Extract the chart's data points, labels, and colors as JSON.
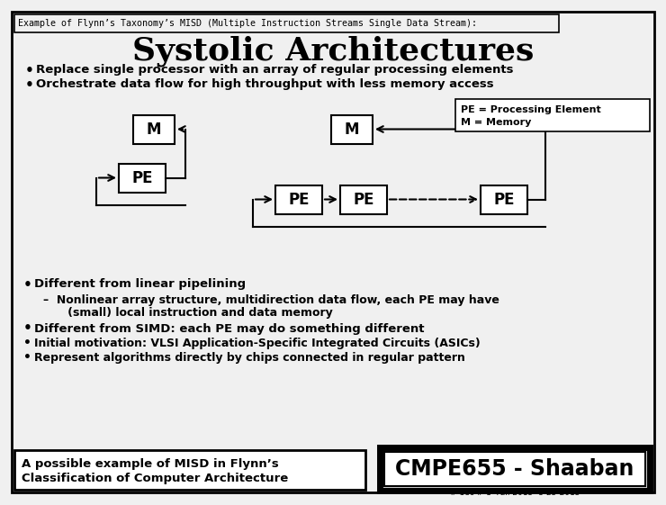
{
  "bg_color": "#f0f0f0",
  "title_top": "Example of Flynn’s Taxonomy’s MISD (Multiple Instruction Streams Single Data Stream):",
  "title_main": "Systolic Architectures",
  "bullet1": "Replace single processor with an array of regular processing elements",
  "bullet2": "Orchestrate data flow for high throughput with less memory access",
  "legend_line1": "PE = Processing Element",
  "legend_line2": "M = Memory",
  "diff_pipelining": "Different from linear pipelining",
  "nonlinear1": "–  Nonlinear array structure, multidirection data flow, each PE may have",
  "nonlinear2": "   (small) local instruction and data memory",
  "diff_simd": "Different from SIMD: each PE may do something different",
  "initial_motivation": "Initial motivation: VLSI Application-Specific Integrated Circuits (ASICs)",
  "represent": "Represent algorithms directly by chips connected in regular pattern",
  "bottom_left1": "A possible example of MISD in Flynn’s",
  "bottom_left2": "Classification of Computer Architecture",
  "bottom_right": "CMPE655 - Shaaban",
  "footer": "# 1ec # 1  Fall 2015  8-25-2015"
}
